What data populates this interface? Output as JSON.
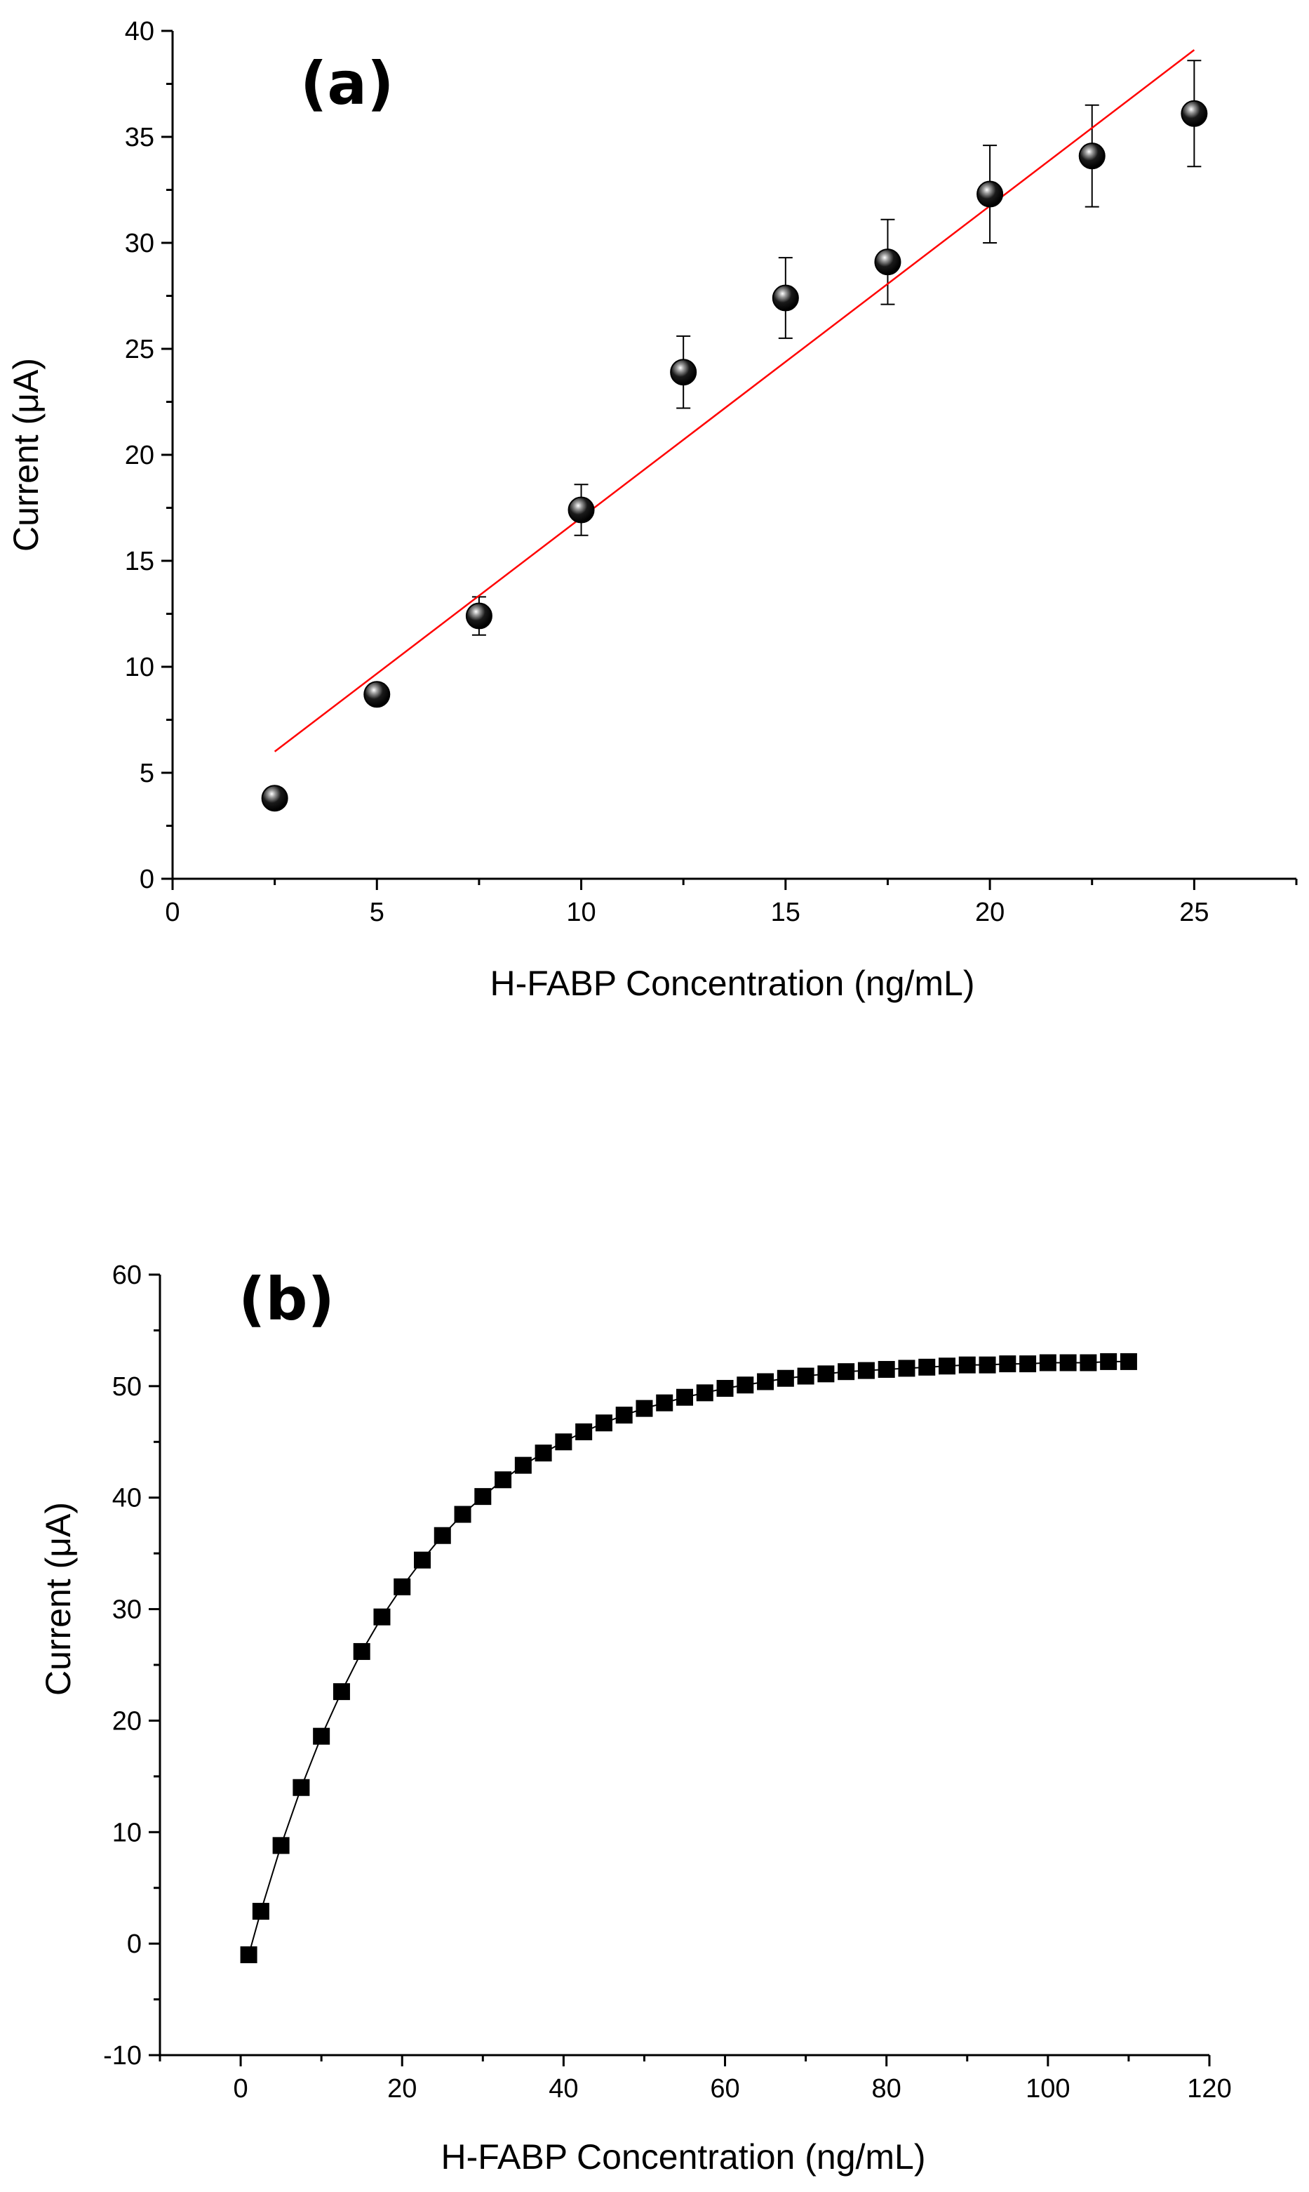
{
  "chart_data": [
    {
      "type": "scatter",
      "panel_label": "(a)",
      "xlabel": "H-FABP Concentration (ng/mL)",
      "ylabel": "Current (μA)",
      "xlim": [
        0,
        27.5
      ],
      "ylim": [
        0,
        40
      ],
      "x_ticks": [
        0,
        5,
        10,
        15,
        20,
        25
      ],
      "y_ticks": [
        0,
        5,
        10,
        15,
        20,
        25,
        30,
        35,
        40
      ],
      "x_tick_labels": [
        "0",
        "5",
        "10",
        "15",
        "20",
        "25"
      ],
      "y_tick_labels": [
        "0",
        "5",
        "10",
        "15",
        "20",
        "25",
        "30",
        "35",
        "40"
      ],
      "marker": "sphere",
      "marker_color": "#000000",
      "series": [
        {
          "name": "data",
          "x": [
            2.5,
            5,
            7.5,
            10,
            12.5,
            15,
            17.5,
            20,
            22.5,
            25
          ],
          "y": [
            3.8,
            8.7,
            12.4,
            17.4,
            23.9,
            27.4,
            29.1,
            32.3,
            34.1,
            36.1
          ],
          "error": [
            0.3,
            0.5,
            0.9,
            1.2,
            1.7,
            1.9,
            2.0,
            2.3,
            2.4,
            2.5
          ]
        }
      ],
      "fit_line": {
        "x": [
          2.5,
          25
        ],
        "y": [
          6.0,
          39.1
        ],
        "color": "#ff0000"
      }
    },
    {
      "type": "line",
      "panel_label": "(b)",
      "xlabel": "H-FABP Concentration (ng/mL)",
      "ylabel": "Current (μA)",
      "xlim": [
        -10,
        120
      ],
      "ylim": [
        -10,
        60
      ],
      "x_ticks": [
        0,
        20,
        40,
        60,
        80,
        100,
        120
      ],
      "y_ticks": [
        -10,
        0,
        10,
        20,
        30,
        40,
        50,
        60
      ],
      "x_tick_labels": [
        "0",
        "20",
        "40",
        "60",
        "80",
        "100",
        "120"
      ],
      "y_tick_labels": [
        "-10",
        "0",
        "10",
        "20",
        "30",
        "40",
        "50",
        "60"
      ],
      "marker": "square",
      "marker_color": "#000000",
      "series": [
        {
          "name": "data",
          "x": [
            1,
            2.5,
            5,
            7.5,
            10,
            12.5,
            15,
            17.5,
            20,
            22.5,
            25,
            27.5,
            30,
            32.5,
            35,
            37.5,
            40,
            42.5,
            45,
            47.5,
            50,
            52.5,
            55,
            57.5,
            60,
            62.5,
            65,
            67.5,
            70,
            72.5,
            75,
            77.5,
            80,
            82.5,
            85,
            87.5,
            90,
            92.5,
            95,
            97.5,
            100,
            102.5,
            105,
            107.5,
            110
          ],
          "y": [
            -1.0,
            2.9,
            8.8,
            14.0,
            18.6,
            22.6,
            26.2,
            29.3,
            32.0,
            34.4,
            36.6,
            38.5,
            40.1,
            41.6,
            42.9,
            44.0,
            45.0,
            45.9,
            46.7,
            47.4,
            48.0,
            48.5,
            49.0,
            49.4,
            49.8,
            50.1,
            50.4,
            50.7,
            50.9,
            51.1,
            51.3,
            51.4,
            51.5,
            51.6,
            51.7,
            51.8,
            51.9,
            51.9,
            52.0,
            52.0,
            52.1,
            52.1,
            52.1,
            52.2,
            52.2
          ]
        }
      ]
    }
  ]
}
